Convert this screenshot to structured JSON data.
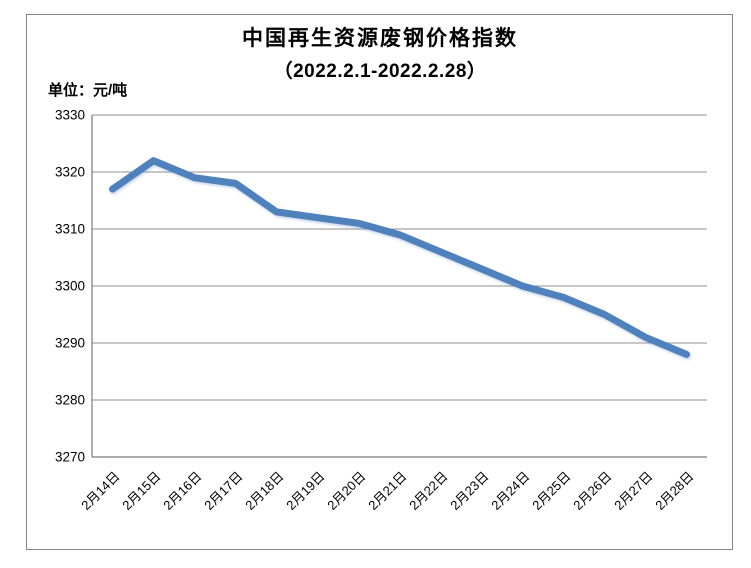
{
  "chart": {
    "title": "中国再生资源废钢价格指数",
    "subtitle": "（2022.2.1-2022.2.28）",
    "unit_label": "单位：元/吨"
  },
  "chart_data": {
    "type": "line",
    "title": "中国再生资源废钢价格指数",
    "subtitle": "（2022.2.1-2022.2.28）",
    "ylabel": "元/吨",
    "xlabel": "",
    "categories": [
      "2月14日",
      "2月15日",
      "2月16日",
      "2月17日",
      "2月18日",
      "2月19日",
      "2月20日",
      "2月21日",
      "2月22日",
      "2月23日",
      "2月24日",
      "2月25日",
      "2月26日",
      "2月27日",
      "2月28日"
    ],
    "values": [
      3317,
      3322,
      3319,
      3318,
      3313,
      3312,
      3311,
      3309,
      3306,
      3303,
      3300,
      3298,
      3295,
      3291,
      3288
    ],
    "ylim": [
      3270,
      3330
    ],
    "ytick_step": 10,
    "grid": true,
    "legend_position": "none",
    "line_color": "#4F81BD",
    "line_width": 7,
    "gridline_color": "#8f8f8f",
    "axis_color": "#7a7a7a"
  }
}
